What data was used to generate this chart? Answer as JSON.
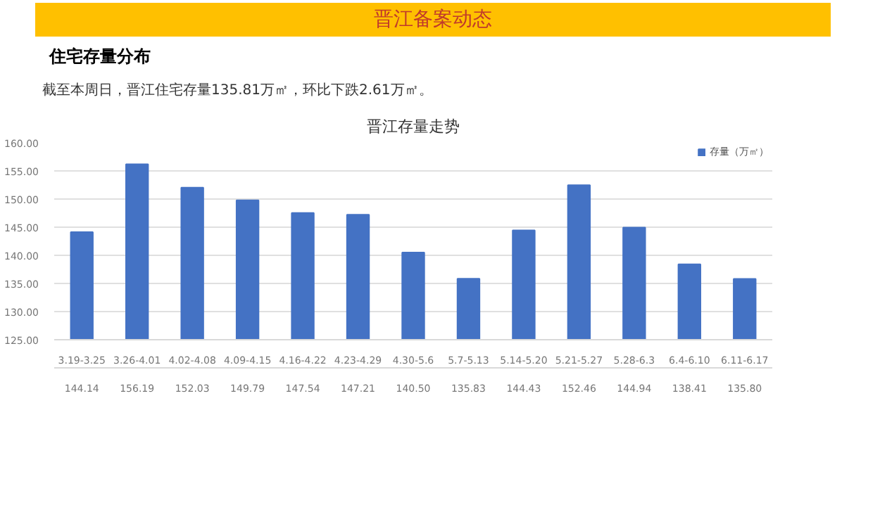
{
  "chart_data": {
    "type": "bar",
    "title": "晋江存量走势",
    "annotations": [
      "晋江备案动态",
      "住宅存量分布",
      "截至本周日，晋江住宅存量135.81万㎡，环比下跌2.61万㎡。"
    ],
    "categories": [
      "3.19-3.25",
      "3.26-4.01",
      "4.02-4.08",
      "4.09-4.15",
      "4.16-4.22",
      "4.23-4.29",
      "4.30-5.6",
      "5.7-5.13",
      "5.14-5.20",
      "5.21-5.27",
      "5.28-6.3",
      "6.4-6.10",
      "6.11-6.17"
    ],
    "series": [
      {
        "name": "存量（万㎡）",
        "color": "#4472c4",
        "values": [
          144.14,
          156.19,
          152.03,
          149.79,
          147.54,
          147.21,
          140.5,
          135.83,
          144.43,
          152.46,
          144.94,
          138.41,
          135.8
        ],
        "value_labels": [
          "144.14",
          "156.19",
          "152.03",
          "149.79",
          "147.54",
          "147.21",
          "140.50",
          "135.83",
          "144.43",
          "152.46",
          "144.94",
          "138.41",
          "135.80"
        ]
      }
    ],
    "ylim": [
      125,
      160
    ],
    "yticks": [
      {
        "value": 125,
        "label": "125.00"
      },
      {
        "value": 130,
        "label": "130.00"
      },
      {
        "value": 135,
        "label": "135.00"
      },
      {
        "value": 140,
        "label": "140.00"
      },
      {
        "value": 145,
        "label": "145.00"
      },
      {
        "value": 150,
        "label": "150.00"
      },
      {
        "value": 155,
        "label": "155.00"
      },
      {
        "value": 160,
        "label": "160.00"
      }
    ],
    "grid": "y",
    "legend": "top right"
  }
}
